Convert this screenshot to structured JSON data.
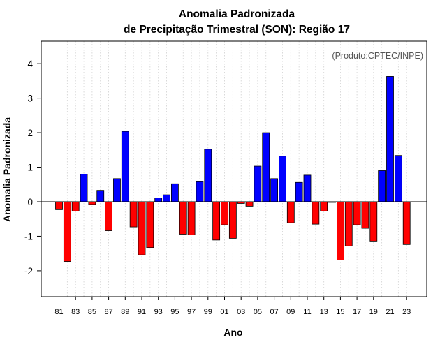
{
  "chart_data": {
    "type": "bar",
    "title": "Anomalia Padronizada",
    "subtitle": "de Precipitação Trimestral (SON): Região 17",
    "xlabel": "Ano",
    "ylabel": "Anomalia Padronizada",
    "credit": "(Produto:CPTEC/INPE)",
    "ylim": [
      -2.75,
      4.65
    ],
    "yticks": [
      -2,
      -1,
      0,
      1,
      2,
      3,
      4
    ],
    "grid": "vertical dotted, every year",
    "colors": {
      "positive": "#0000ff",
      "negative": "#ff0000",
      "grid": "#d0d0d0"
    },
    "categories": [
      "81",
      "82",
      "83",
      "84",
      "85",
      "86",
      "87",
      "88",
      "89",
      "90",
      "91",
      "92",
      "93",
      "94",
      "95",
      "96",
      "97",
      "98",
      "99",
      "00",
      "01",
      "02",
      "03",
      "04",
      "05",
      "06",
      "07",
      "08",
      "09",
      "10",
      "11",
      "12",
      "13",
      "14",
      "15",
      "16",
      "17",
      "18",
      "19",
      "20",
      "21",
      "22",
      "23"
    ],
    "tick_labels": [
      "81",
      "83",
      "85",
      "87",
      "89",
      "91",
      "93",
      "95",
      "97",
      "99",
      "01",
      "03",
      "05",
      "07",
      "09",
      "11",
      "13",
      "15",
      "17",
      "19",
      "21",
      "23"
    ],
    "values": [
      -0.23,
      -1.73,
      -0.27,
      0.8,
      -0.08,
      0.33,
      -0.84,
      0.67,
      2.04,
      -0.73,
      -1.54,
      -1.33,
      0.11,
      0.2,
      0.52,
      -0.94,
      -0.96,
      0.58,
      1.52,
      -1.11,
      -0.67,
      -1.06,
      -0.05,
      -0.13,
      1.03,
      2.0,
      0.67,
      1.32,
      -0.61,
      0.56,
      0.77,
      -0.65,
      -0.27,
      -0.02,
      -1.69,
      -1.28,
      -0.67,
      -0.77,
      -1.14,
      0.9,
      3.63,
      1.34,
      -1.24
    ]
  }
}
